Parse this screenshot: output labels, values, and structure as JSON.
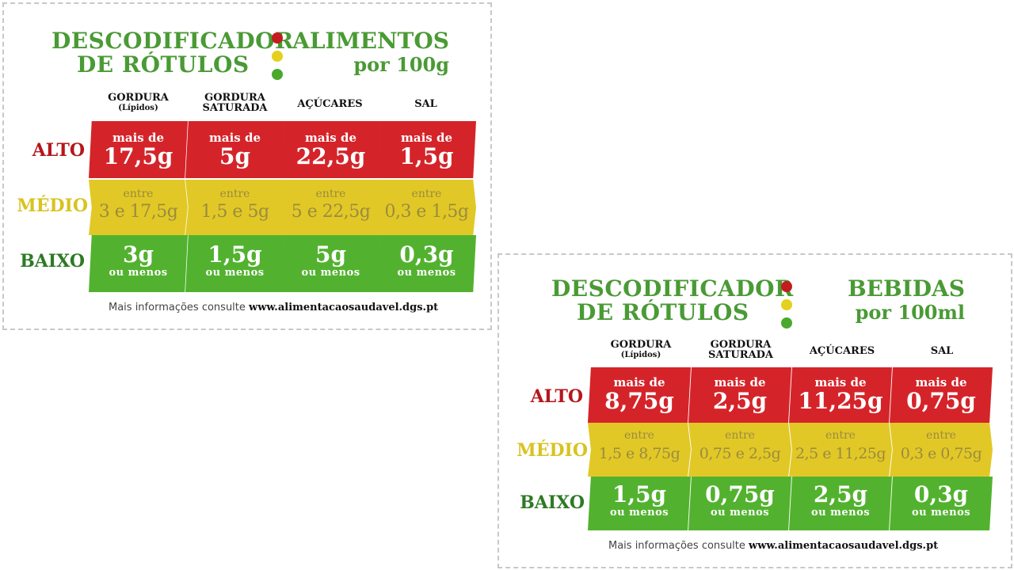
{
  "colors": {
    "green_text": "#4a9a35",
    "red": "#d4242a",
    "yellow": "#e2c826",
    "green": "#52b22f",
    "dot_red": "#c41b1f",
    "dot_yellow": "#e4d01e",
    "dot_green": "#4aa82d"
  },
  "food": {
    "title_line1": "DESCODIFICADOR",
    "title_line2": "DE RÓTULOS",
    "category": "ALIMENTOS",
    "unit": "por 100g",
    "headers": [
      {
        "line1": "GORDURA",
        "line2": "(Lípidos)"
      },
      {
        "line1": "GORDURA",
        "line2": "SATURADA"
      },
      {
        "line1": "AÇÚCARES",
        "line2": ""
      },
      {
        "line1": "SAL",
        "line2": ""
      }
    ],
    "rows": {
      "alto": "ALTO",
      "medio": "MÉDIO",
      "baixo": "BAIXO"
    },
    "alto": [
      {
        "pre": "mais de",
        "value": "17,5g"
      },
      {
        "pre": "mais de",
        "value": "5g"
      },
      {
        "pre": "mais de",
        "value": "22,5g"
      },
      {
        "pre": "mais de",
        "value": "1,5g"
      }
    ],
    "medio": [
      {
        "pre": "entre",
        "value": "3 e 17,5g"
      },
      {
        "pre": "entre",
        "value": "1,5 e 5g"
      },
      {
        "pre": "entre",
        "value": "5 e 22,5g"
      },
      {
        "pre": "entre",
        "value": "0,3 e 1,5g"
      }
    ],
    "baixo": [
      {
        "value": "3g",
        "post": "ou menos"
      },
      {
        "value": "1,5g",
        "post": "ou menos"
      },
      {
        "value": "5g",
        "post": "ou menos"
      },
      {
        "value": "0,3g",
        "post": "ou menos"
      }
    ],
    "footer_text": "Mais informações consulte",
    "footer_url": "www.alimentacaosaudavel.dgs.pt"
  },
  "drink": {
    "title_line1": "DESCODIFICADOR",
    "title_line2": "DE RÓTULOS",
    "category": "BEBIDAS",
    "unit": "por 100ml",
    "headers": [
      {
        "line1": "GORDURA",
        "line2": "(Lípidos)"
      },
      {
        "line1": "GORDURA",
        "line2": "SATURADA"
      },
      {
        "line1": "AÇÚCARES",
        "line2": ""
      },
      {
        "line1": "SAL",
        "line2": ""
      }
    ],
    "rows": {
      "alto": "ALTO",
      "medio": "MÉDIO",
      "baixo": "BAIXO"
    },
    "alto": [
      {
        "pre": "mais de",
        "value": "8,75g"
      },
      {
        "pre": "mais de",
        "value": "2,5g"
      },
      {
        "pre": "mais de",
        "value": "11,25g"
      },
      {
        "pre": "mais de",
        "value": "0,75g"
      }
    ],
    "medio": [
      {
        "pre": "entre",
        "value": "1,5 e 8,75g"
      },
      {
        "pre": "entre",
        "value": "0,75 e 2,5g"
      },
      {
        "pre": "entre",
        "value": "2,5 e 11,25g"
      },
      {
        "pre": "entre",
        "value": "0,3 e 0,75g"
      }
    ],
    "baixo": [
      {
        "value": "1,5g",
        "post": "ou menos"
      },
      {
        "value": "0,75g",
        "post": "ou menos"
      },
      {
        "value": "2,5g",
        "post": "ou menos"
      },
      {
        "value": "0,3g",
        "post": "ou menos"
      }
    ],
    "footer_text": "Mais informações consulte",
    "footer_url": "www.alimentacaosaudavel.dgs.pt"
  }
}
